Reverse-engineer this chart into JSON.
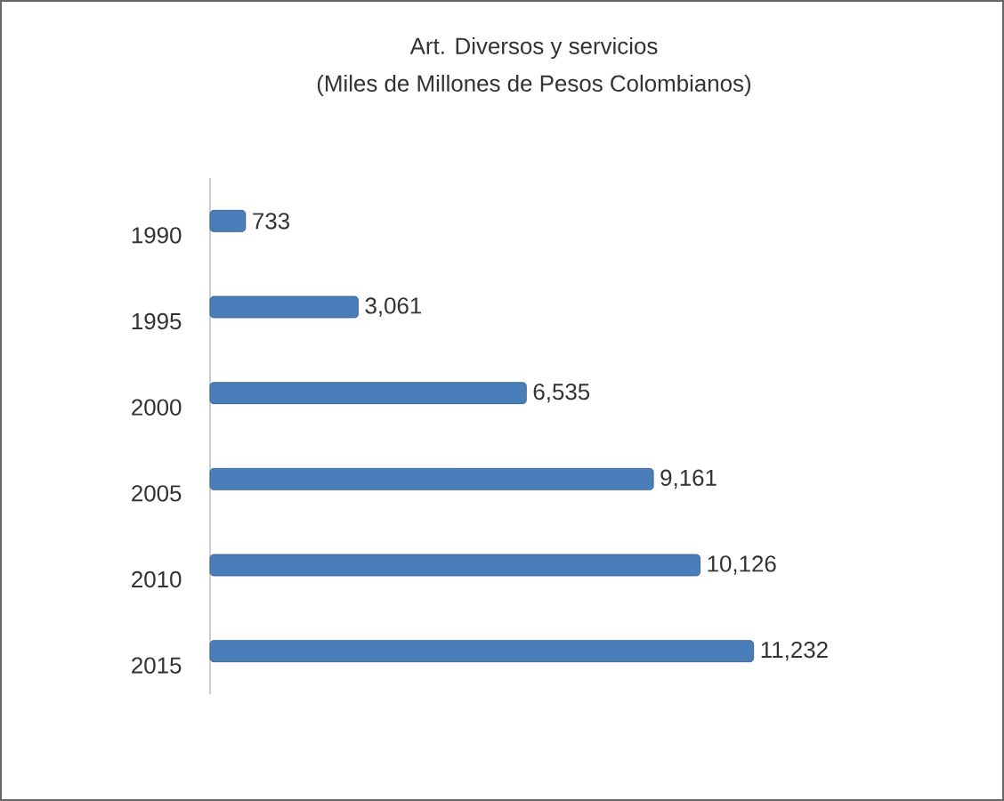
{
  "chart_data": {
    "type": "bar",
    "orientation": "horizontal",
    "title": "Art. Diversos y servicios",
    "subtitle": "(Miles de Millones de Pesos Colombianos)",
    "categories": [
      "1990",
      "1995",
      "2000",
      "2005",
      "2010",
      "2015"
    ],
    "values": [
      733,
      3061,
      6535,
      9161,
      10126,
      11232
    ],
    "value_labels": [
      "733",
      "3,061",
      "6,535",
      "9,161",
      "10,126",
      "11,232"
    ],
    "color": "#4a7ebb"
  }
}
